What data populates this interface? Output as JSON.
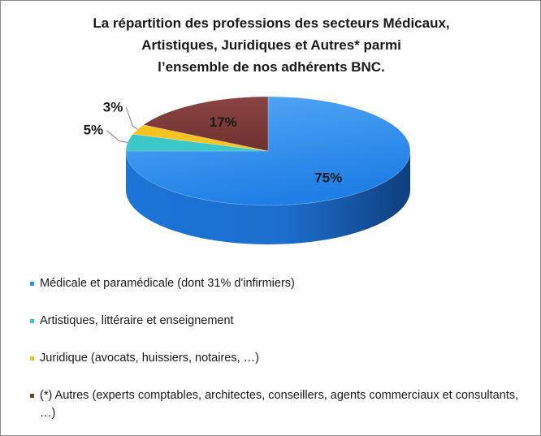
{
  "title_lines": [
    "La répartition des professions des secteurs Médicaux,",
    "Artistiques, Juridiques et Autres* parmi",
    "l’ensemble de nos adhérents BNC."
  ],
  "chart_data": {
    "type": "pie",
    "style": "3d",
    "title": "La répartition des professions des secteurs Médicaux, Artistiques, Juridiques et Autres* parmi l’ensemble de nos adhérents BNC.",
    "categories": [
      "Médicale et paramédicale (dont 31% d'infirmiers)",
      "Artistiques, littéraire et enseignement",
      "Juridique  (avocats, huissiers, notaires, …)",
      "(*) Autres (experts comptables, architectes, conseillers, agents commerciaux et consultants, …)"
    ],
    "values": [
      75,
      5,
      3,
      17
    ],
    "value_labels": [
      "75%",
      "5%",
      "3%",
      "17%"
    ],
    "colors": [
      "#2f8fef",
      "#3dc7c7",
      "#f6c320",
      "#7b3a38"
    ],
    "legend_position": "bottom"
  }
}
